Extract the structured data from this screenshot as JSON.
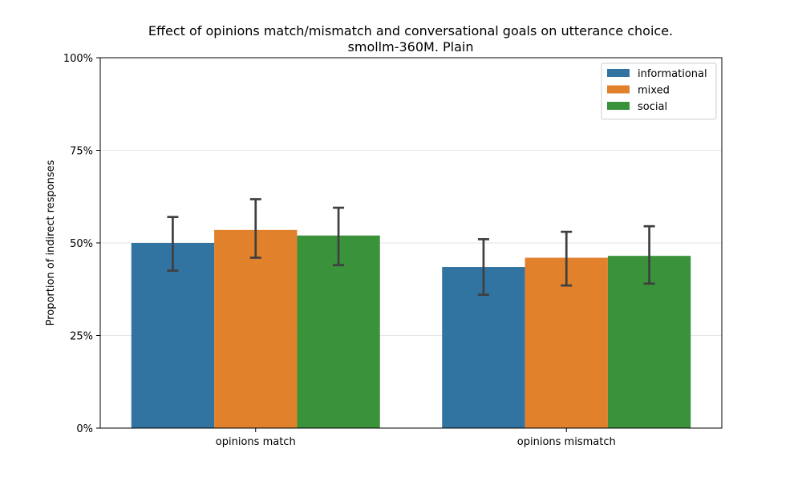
{
  "chart_data": {
    "type": "bar",
    "title": "Effect of opinions match/mismatch and conversational goals on utterance choice.",
    "subtitle": "smollm-360M. Plain",
    "xlabel": "",
    "ylabel": "Proportion of indirect responses",
    "ylim": [
      0,
      1
    ],
    "yticks": [
      "0%",
      "25%",
      "50%",
      "75%",
      "100%"
    ],
    "ytick_values": [
      0,
      0.25,
      0.5,
      0.75,
      1.0
    ],
    "grid": "horizontal",
    "legend_position": "top-right",
    "categories": [
      "opinions match",
      "opinions mismatch"
    ],
    "series": [
      {
        "name": "informational",
        "color": "#3274a1",
        "values": [
          0.5,
          0.435
        ],
        "err_low": [
          0.425,
          0.36
        ],
        "err_high": [
          0.57,
          0.51
        ]
      },
      {
        "name": "mixed",
        "color": "#e1812c",
        "values": [
          0.535,
          0.46
        ],
        "err_low": [
          0.46,
          0.385
        ],
        "err_high": [
          0.618,
          0.53
        ]
      },
      {
        "name": "social",
        "color": "#3a923a",
        "values": [
          0.52,
          0.465
        ],
        "err_low": [
          0.44,
          0.39
        ],
        "err_high": [
          0.595,
          0.545
        ]
      }
    ]
  }
}
